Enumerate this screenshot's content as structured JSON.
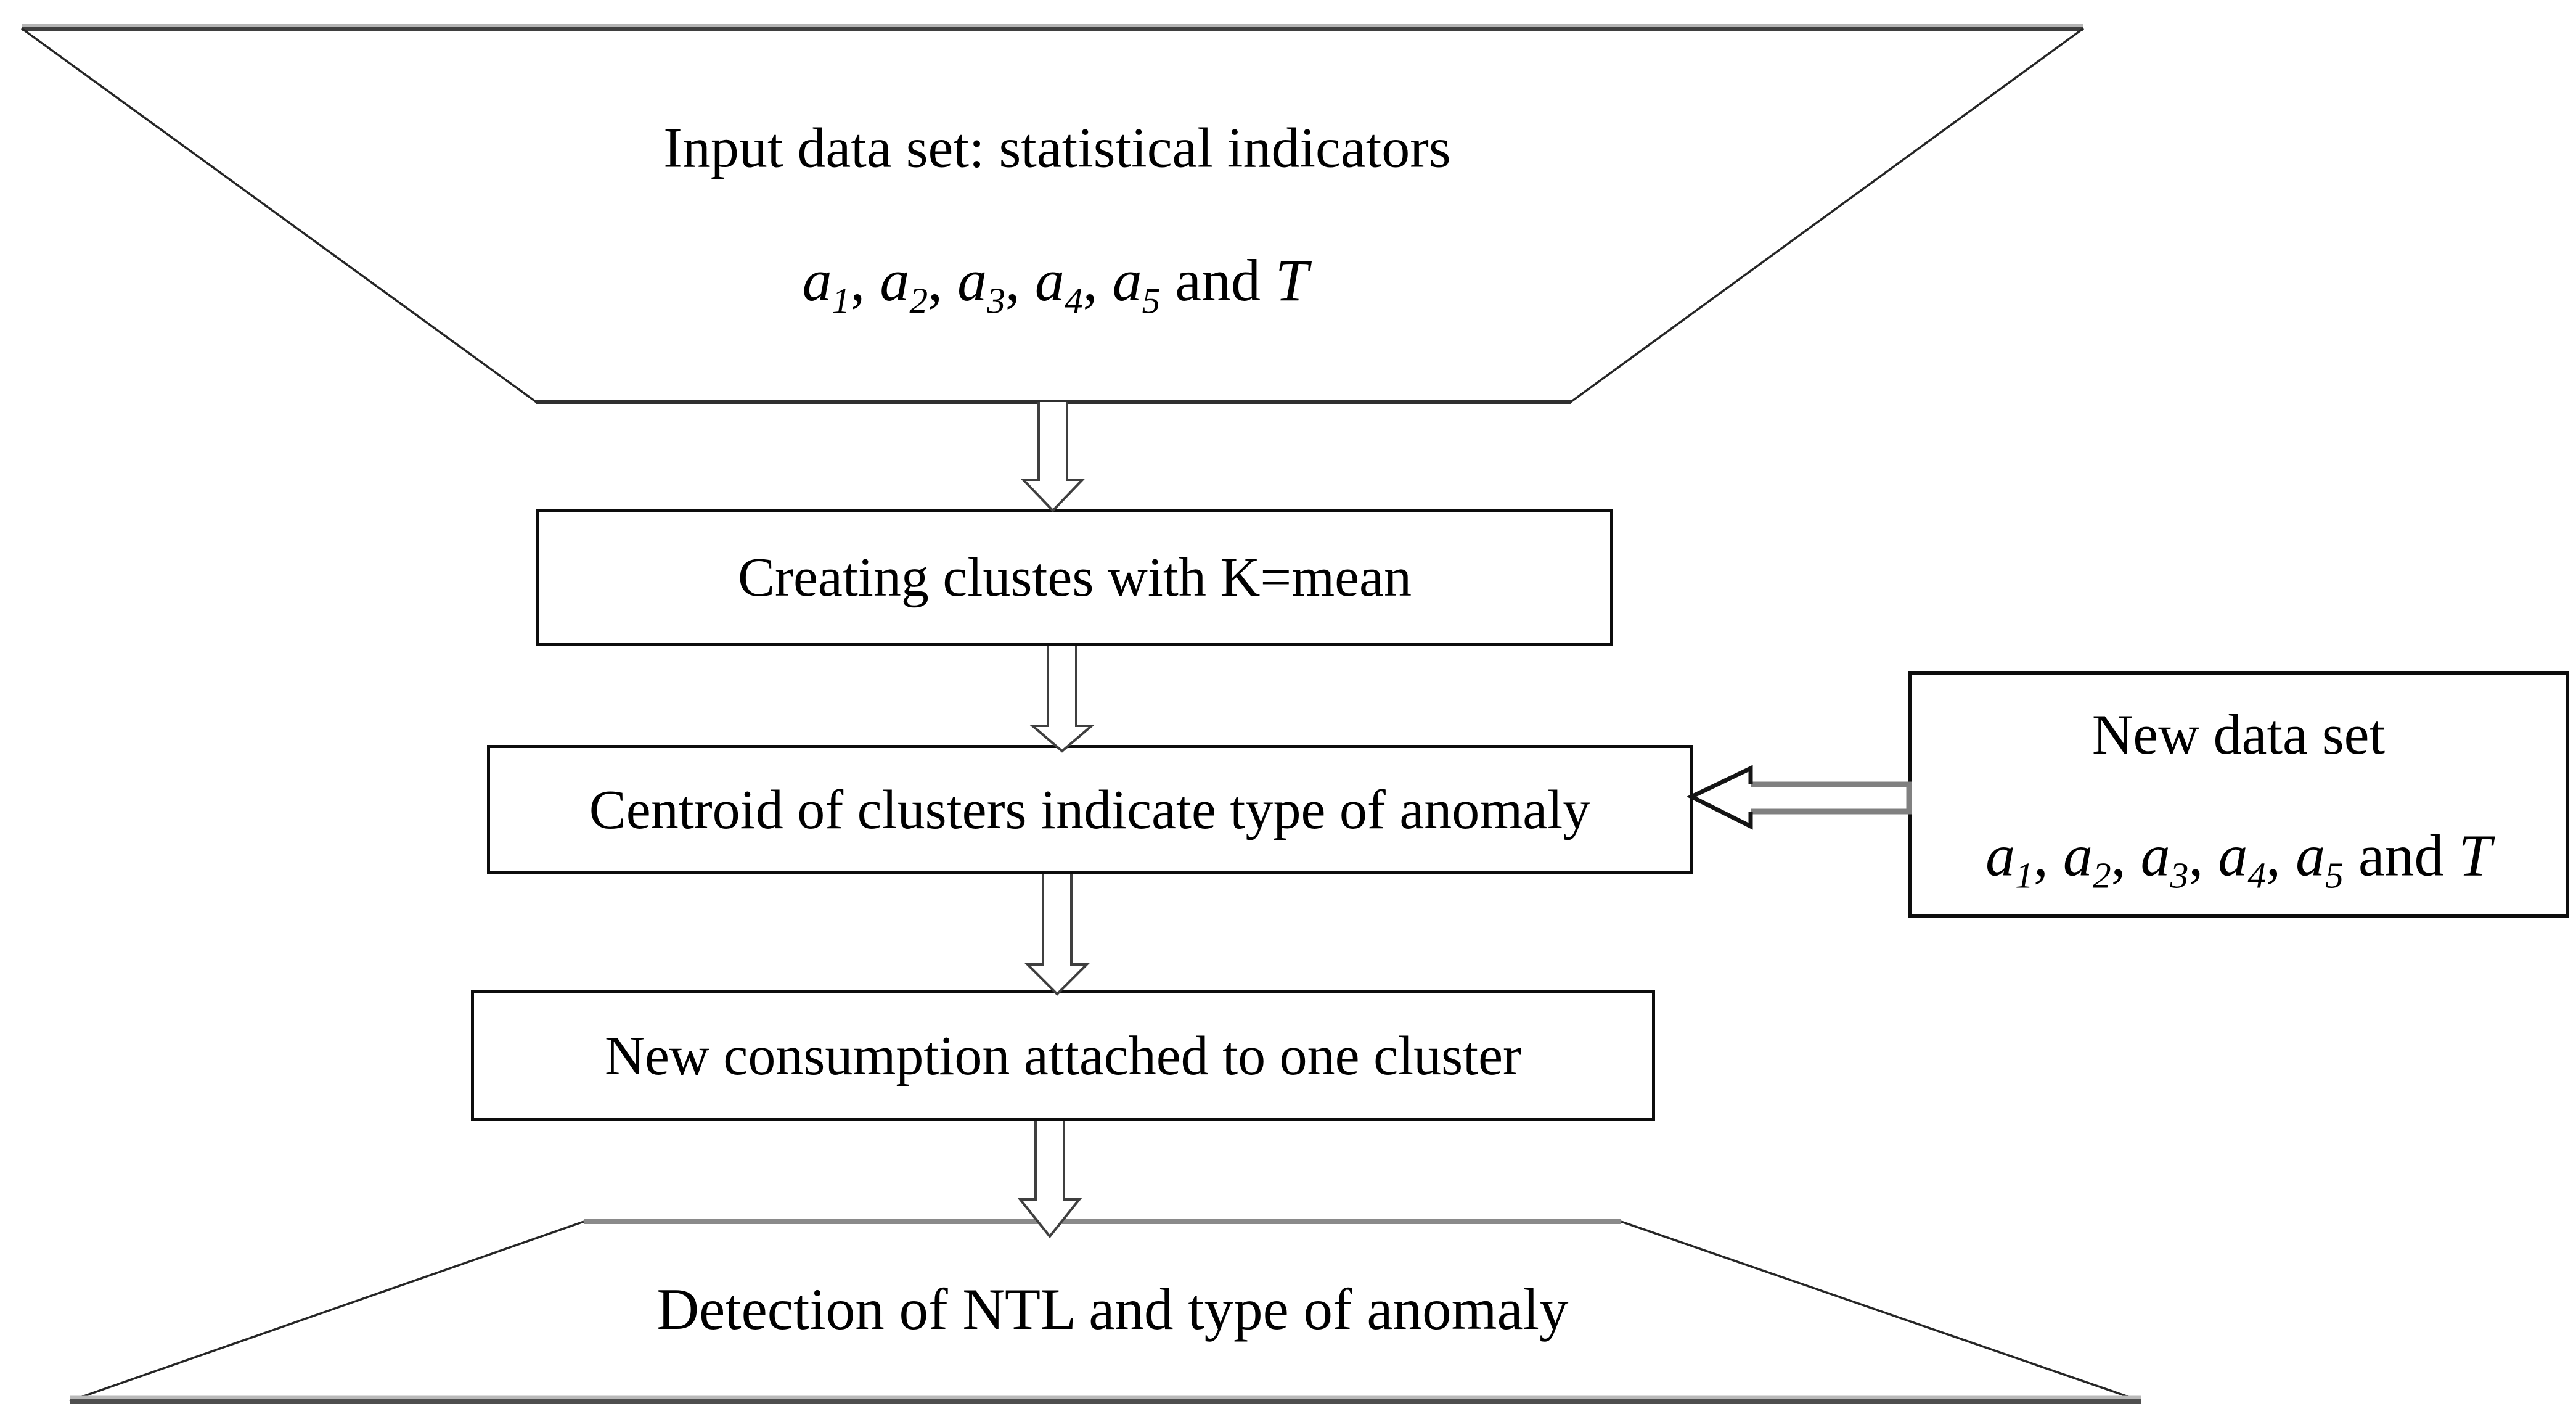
{
  "figure": {
    "background": "#ffffff",
    "text_color": "#000000",
    "nodes": {
      "input": {
        "line1": "Input data set: statistical indicators"
      },
      "kmeans": {
        "label": "Creating clustes with K=mean"
      },
      "centroid": {
        "label": "Centroid of clusters indicate type of anomaly"
      },
      "newdata": {
        "title": "New data set"
      },
      "attach": {
        "label": "New consumption attached to one cluster"
      },
      "detect": {
        "label": "Detection of NTL and type of anomaly"
      }
    },
    "formula_tokens": [
      {
        "t": "a",
        "i": true
      },
      {
        "t": "1",
        "i": true,
        "sub": true
      },
      {
        "t": ", "
      },
      {
        "t": "a",
        "i": true
      },
      {
        "t": "2",
        "i": true,
        "sub": true
      },
      {
        "t": ", "
      },
      {
        "t": "a",
        "i": true
      },
      {
        "t": "3",
        "i": true,
        "sub": true
      },
      {
        "t": ", "
      },
      {
        "t": "a",
        "i": true
      },
      {
        "t": "4",
        "i": true,
        "sub": true
      },
      {
        "t": ", "
      },
      {
        "t": "a",
        "i": true
      },
      {
        "t": "5",
        "i": true,
        "sub": true
      },
      {
        "t": " and "
      },
      {
        "t": "T",
        "i": true
      }
    ],
    "colors": {
      "box_border": "#0d0d0d",
      "trapezoid_edge_dark": "#3f3f3f",
      "trapezoid_edge_gray": "#8a8a8a",
      "trapezoid_edge_light": "#b5b5b5",
      "trapezoid_diagonal": "#262626",
      "down_arrow_outline": "#3f3f3f",
      "left_arrow_head": "#141414",
      "left_arrow_shaft": "#808080",
      "shape_fill": "#ffffff"
    }
  }
}
